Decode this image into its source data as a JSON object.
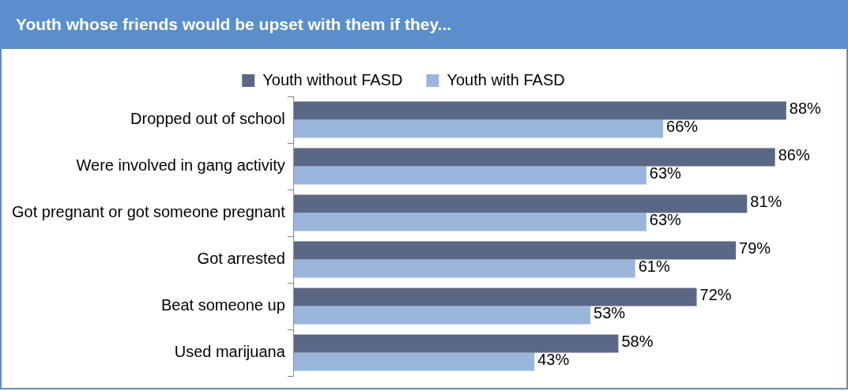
{
  "chart_data": {
    "type": "bar",
    "orientation": "horizontal",
    "title": "Youth whose friends would be upset with them if they...",
    "categories": [
      "Dropped out of school",
      "Were involved in gang activity",
      "Got pregnant or got someone pregnant",
      "Got arrested",
      "Beat someone up",
      "Used marijuana"
    ],
    "series": [
      {
        "name": "Youth without FASD",
        "color": "#5b6885",
        "values": [
          88,
          86,
          81,
          79,
          72,
          58
        ],
        "value_labels": [
          "88%",
          "86%",
          "81%",
          "79%",
          "72%",
          "58%"
        ]
      },
      {
        "name": "Youth with FASD",
        "color": "#9ab6da",
        "values": [
          66,
          63,
          63,
          61,
          53,
          43
        ],
        "value_labels": [
          "66%",
          "63%",
          "63%",
          "61%",
          "53%",
          "43%"
        ]
      }
    ],
    "legend": "top"
  }
}
